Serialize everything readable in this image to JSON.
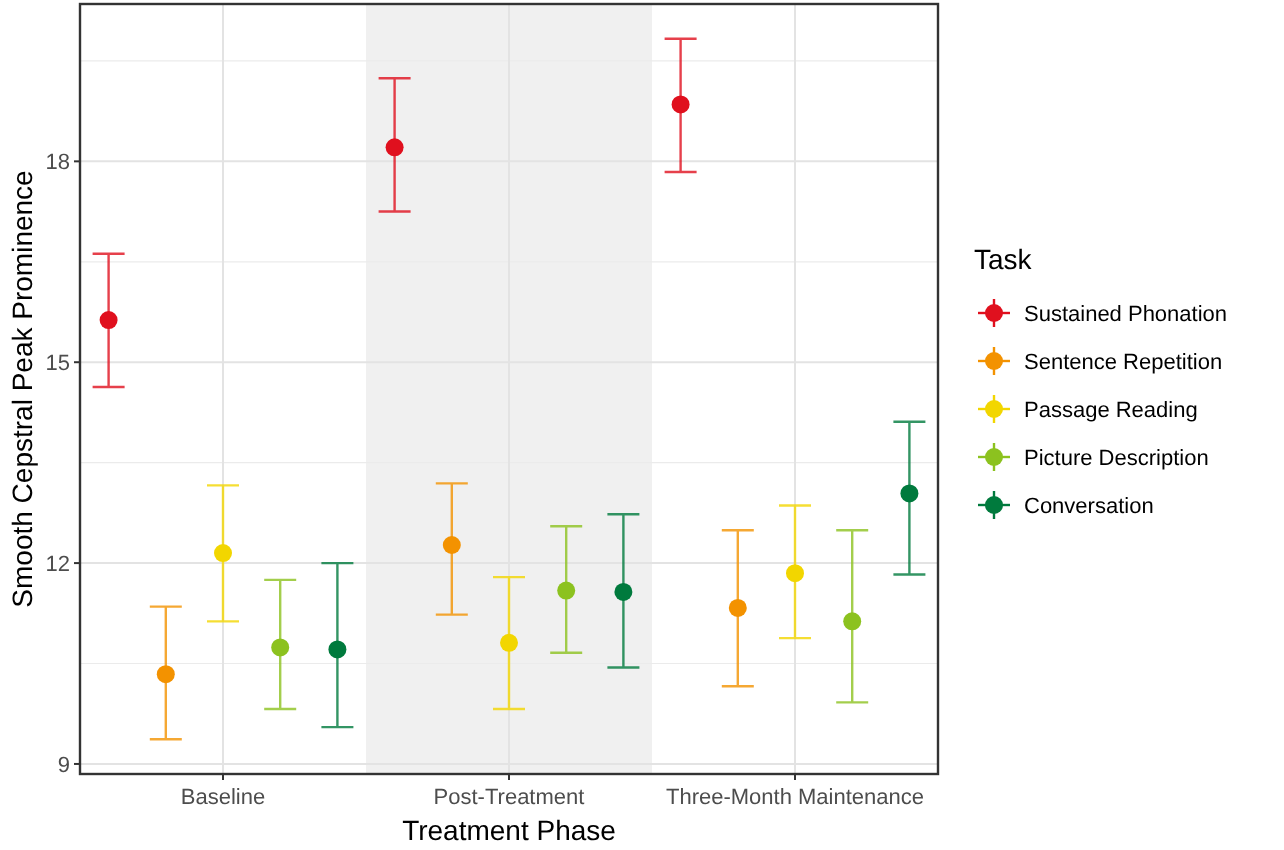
{
  "chart_data": {
    "type": "scatter",
    "xlabel": "Treatment Phase",
    "ylabel": "Smooth Cepstral Peak Prominence",
    "legend_title": "Task",
    "legend": "right",
    "grid": true,
    "marker": "circle",
    "categories": [
      "Baseline",
      "Post-Treatment",
      "Three-Month Maintenance"
    ],
    "ylim": [
      8.85,
      20.35
    ],
    "yticks": [
      9,
      12,
      15,
      18
    ],
    "bands": [
      {
        "axis": "x",
        "from": "Post-Treatment",
        "to": "Post-Treatment",
        "color": "#f0f0f0"
      }
    ],
    "series": [
      {
        "name": "Sustained Phonation",
        "color": "#e0101e",
        "values": [
          15.63,
          18.21,
          18.85
        ],
        "errors": [
          [
            14.63,
            16.62
          ],
          [
            17.25,
            19.24
          ],
          [
            17.84,
            19.83
          ]
        ]
      },
      {
        "name": "Sentence Repetition",
        "color": "#f39200",
        "values": [
          10.34,
          12.27,
          11.33
        ],
        "errors": [
          [
            9.37,
            11.35
          ],
          [
            11.23,
            13.19
          ],
          [
            10.16,
            12.49
          ]
        ]
      },
      {
        "name": "Passage Reading",
        "color": "#f2d600",
        "values": [
          12.15,
          10.81,
          11.85
        ],
        "errors": [
          [
            11.13,
            13.16
          ],
          [
            9.82,
            11.79
          ],
          [
            10.88,
            12.86
          ]
        ]
      },
      {
        "name": "Picture Description",
        "color": "#8cc21f",
        "values": [
          10.74,
          11.59,
          11.13
        ],
        "errors": [
          [
            9.82,
            11.75
          ],
          [
            10.66,
            12.55
          ],
          [
            9.92,
            12.49
          ]
        ]
      },
      {
        "name": "Conversation",
        "color": "#007a3d",
        "values": [
          10.71,
          11.57,
          13.04
        ],
        "errors": [
          [
            9.55,
            12.0
          ],
          [
            10.44,
            12.73
          ],
          [
            11.83,
            14.11
          ]
        ]
      }
    ]
  }
}
